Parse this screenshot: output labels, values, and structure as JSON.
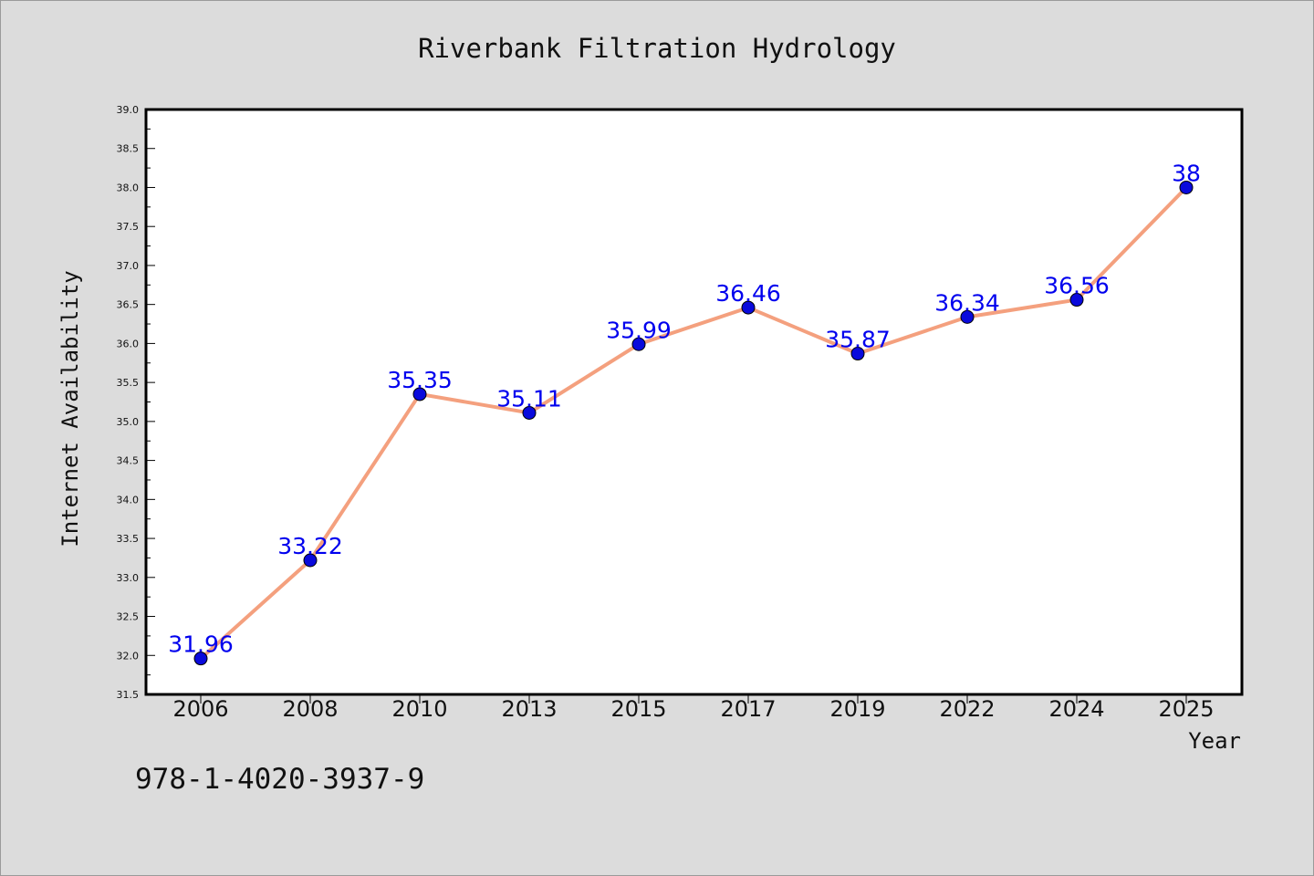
{
  "chart_data": {
    "type": "line",
    "title": "Riverbank Filtration Hydrology",
    "xlabel": "Year",
    "ylabel": "Internet Availability",
    "categories": [
      "2006",
      "2008",
      "2010",
      "2013",
      "2015",
      "2017",
      "2019",
      "2022",
      "2024",
      "2025"
    ],
    "series": [
      {
        "values": [
          31.96,
          33.22,
          35.35,
          35.11,
          35.99,
          36.46,
          35.87,
          36.34,
          36.56,
          38
        ],
        "labels": [
          "31.96",
          "33.22",
          "35.35",
          "35.11",
          "35.99",
          "36.46",
          "35.87",
          "36.34",
          "36.56",
          "38"
        ],
        "line_color": "#f4a07e",
        "marker_color": "#0a0adc"
      }
    ],
    "ylim": [
      31.5,
      39.0
    ],
    "yticks": [
      "31.5",
      "32.0",
      "32.5",
      "33.0",
      "33.5",
      "34.0",
      "34.5",
      "35.0",
      "35.5",
      "36.0",
      "36.5",
      "37.0",
      "37.5",
      "38.0",
      "38.5",
      "39.0"
    ],
    "grid": false,
    "label_color": "#0000ee",
    "background": "#dcdcdc",
    "plot_background": "#ffffff"
  },
  "annotation": "978-1-4020-3937-9"
}
